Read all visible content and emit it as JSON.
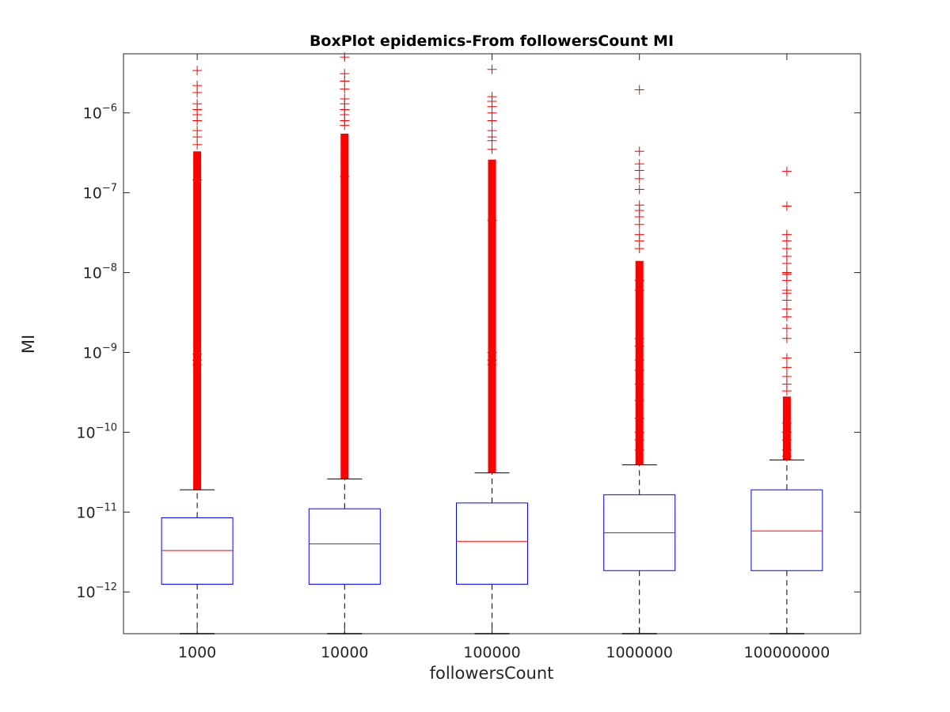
{
  "chart_data": {
    "type": "box",
    "title": "BoxPlot epidemics-From followersCount MI",
    "xlabel": "followersCount",
    "ylabel": "MI",
    "y_scale": "log",
    "ylim": [
      3e-13,
      5.5e-06
    ],
    "y_ticks": [
      {
        "value": 1e-12,
        "base": "10",
        "exp": "−12"
      },
      {
        "value": 1e-11,
        "base": "10",
        "exp": "−11"
      },
      {
        "value": 1e-10,
        "base": "10",
        "exp": "−10"
      },
      {
        "value": 1e-09,
        "base": "10",
        "exp": "−9"
      },
      {
        "value": 1e-08,
        "base": "10",
        "exp": "−8"
      },
      {
        "value": 1e-07,
        "base": "10",
        "exp": "−7"
      },
      {
        "value": 1e-06,
        "base": "10",
        "exp": "−6"
      }
    ],
    "categories": [
      "1000",
      "10000",
      "100000",
      "1000000",
      "100000000"
    ],
    "boxes": [
      {
        "category": "1000",
        "whisker_low": 3e-13,
        "q1": 1.25e-12,
        "median": 3.3e-12,
        "q3": 8.5e-12,
        "whisker_high": 1.9e-11,
        "outlier_band": [
          1.9e-11,
          3.3e-07
        ],
        "outliers": [
          3.4e-06,
          2.2e-06,
          1.8e-06,
          1.3e-06,
          1.1e-06,
          9.5e-07,
          8e-07,
          6e-07,
          5e-07,
          4e-07,
          1.45e-07,
          9.5e-10,
          8e-10,
          7e-10
        ]
      },
      {
        "category": "10000",
        "whisker_low": 3e-13,
        "q1": 1.25e-12,
        "median": 4e-12,
        "q3": 1.1e-11,
        "whisker_high": 2.6e-11,
        "outlier_band": [
          2.6e-11,
          5.5e-07
        ],
        "outliers": [
          5e-06,
          3.1e-06,
          2.5e-06,
          2e-06,
          1.5e-06,
          1.3e-06,
          1.1e-06,
          9.5e-07,
          8e-07,
          7e-07,
          1.6e-07
        ]
      },
      {
        "category": "100000",
        "whisker_low": 3e-13,
        "q1": 1.25e-12,
        "median": 4.3e-12,
        "q3": 1.3e-11,
        "whisker_high": 3.1e-11,
        "outlier_band": [
          3.1e-11,
          2.6e-07
        ],
        "outliers": [
          3.5e-06,
          1.6e-06,
          1.4e-06,
          1.2e-06,
          1e-06,
          8e-07,
          6e-07,
          5e-07,
          4.5e-07,
          3.5e-07,
          4.5e-08,
          1e-09,
          8e-10,
          7e-10
        ]
      },
      {
        "category": "1000000",
        "whisker_low": 3e-13,
        "q1": 1.85e-12,
        "median": 5.5e-12,
        "q3": 1.65e-11,
        "whisker_high": 3.9e-11,
        "outlier_band": [
          3.9e-11,
          1.4e-08
        ],
        "outliers": [
          1.95e-06,
          3.3e-07,
          2.3e-07,
          1.9e-07,
          1.5e-07,
          1.1e-07,
          7e-08,
          6e-08,
          5e-08,
          4e-08,
          3e-08,
          2.5e-08,
          2e-08,
          8e-09,
          6e-09,
          1.5e-09,
          1.2e-09,
          8e-10,
          6e-10,
          4e-10,
          2.5e-10,
          1.5e-10,
          1e-10,
          8e-11,
          6e-11
        ]
      },
      {
        "category": "100000000",
        "whisker_low": 3e-13,
        "q1": 1.85e-12,
        "median": 5.8e-12,
        "q3": 1.9e-11,
        "whisker_high": 4.5e-11,
        "outlier_band": [
          4.5e-11,
          2.8e-10
        ],
        "outliers": [
          1.85e-07,
          6.8e-08,
          3e-08,
          2.5e-08,
          2e-08,
          1.6e-08,
          1.3e-08,
          1e-08,
          9.5e-09,
          8e-09,
          6e-09,
          5.5e-09,
          4.5e-09,
          3.5e-09,
          2.8e-09,
          2e-09,
          1.5e-09,
          8.5e-10,
          6.5e-10,
          5e-10,
          4e-10,
          3.3e-10,
          1.3e-10,
          1e-10,
          8e-11,
          6e-11,
          5e-11
        ]
      }
    ],
    "colors": {
      "box": "#0000ff",
      "median": "#ff0000",
      "outlier": "#ff0000",
      "whisker": "#000000",
      "axes": "#262626"
    },
    "grid": false,
    "legend": "none"
  }
}
